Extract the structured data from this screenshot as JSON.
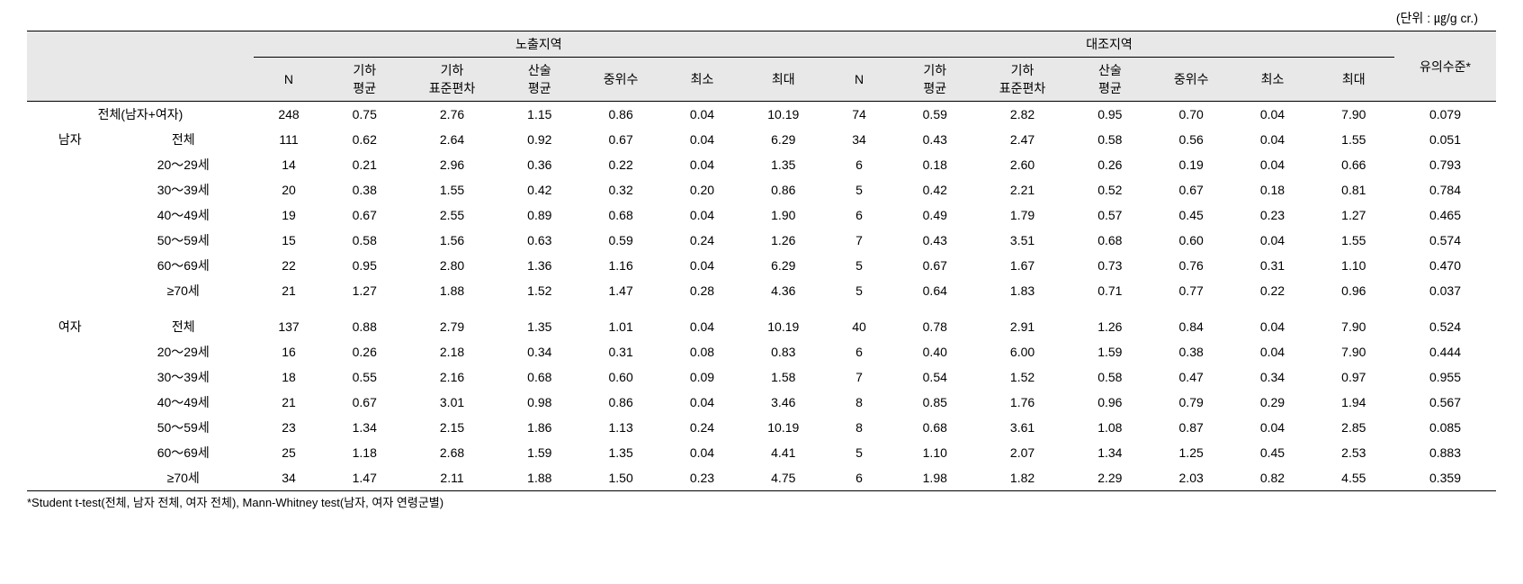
{
  "unit_label": "(단위 : ㎍/g cr.)",
  "headers": {
    "group_a": "노출지역",
    "group_b": "대조지역",
    "n": "N",
    "geo_mean": "기하\n평균",
    "geo_std": "기하\n표준편차",
    "arith_mean": "산술\n평균",
    "median": "중위수",
    "min": "최소",
    "max": "최대",
    "sig": "유의수준*"
  },
  "categories": {
    "total": "전체(남자+여자)",
    "male": "남자",
    "female": "여자",
    "all": "전체",
    "a20": "20～29세",
    "a30": "30～39세",
    "a40": "40～49세",
    "a50": "50～59세",
    "a60": "60～69세",
    "a70": "≥70세"
  },
  "rows": [
    {
      "cat1": "",
      "cat2_key": "total",
      "a": {
        "n": "248",
        "gm": "0.75",
        "gs": "2.76",
        "am": "1.15",
        "med": "0.86",
        "min": "0.04",
        "max": "10.19"
      },
      "b": {
        "n": "74",
        "gm": "0.59",
        "gs": "2.82",
        "am": "0.95",
        "med": "0.70",
        "min": "0.04",
        "max": "7.90"
      },
      "sig": "0.079"
    },
    {
      "cat1_key": "male",
      "cat2_key": "all",
      "a": {
        "n": "111",
        "gm": "0.62",
        "gs": "2.64",
        "am": "0.92",
        "med": "0.67",
        "min": "0.04",
        "max": "6.29"
      },
      "b": {
        "n": "34",
        "gm": "0.43",
        "gs": "2.47",
        "am": "0.58",
        "med": "0.56",
        "min": "0.04",
        "max": "1.55"
      },
      "sig": "0.051"
    },
    {
      "cat1": "",
      "cat2_key": "a20",
      "a": {
        "n": "14",
        "gm": "0.21",
        "gs": "2.96",
        "am": "0.36",
        "med": "0.22",
        "min": "0.04",
        "max": "1.35"
      },
      "b": {
        "n": "6",
        "gm": "0.18",
        "gs": "2.60",
        "am": "0.26",
        "med": "0.19",
        "min": "0.04",
        "max": "0.66"
      },
      "sig": "0.793"
    },
    {
      "cat1": "",
      "cat2_key": "a30",
      "a": {
        "n": "20",
        "gm": "0.38",
        "gs": "1.55",
        "am": "0.42",
        "med": "0.32",
        "min": "0.20",
        "max": "0.86"
      },
      "b": {
        "n": "5",
        "gm": "0.42",
        "gs": "2.21",
        "am": "0.52",
        "med": "0.67",
        "min": "0.18",
        "max": "0.81"
      },
      "sig": "0.784"
    },
    {
      "cat1": "",
      "cat2_key": "a40",
      "a": {
        "n": "19",
        "gm": "0.67",
        "gs": "2.55",
        "am": "0.89",
        "med": "0.68",
        "min": "0.04",
        "max": "1.90"
      },
      "b": {
        "n": "6",
        "gm": "0.49",
        "gs": "1.79",
        "am": "0.57",
        "med": "0.45",
        "min": "0.23",
        "max": "1.27"
      },
      "sig": "0.465"
    },
    {
      "cat1": "",
      "cat2_key": "a50",
      "a": {
        "n": "15",
        "gm": "0.58",
        "gs": "1.56",
        "am": "0.63",
        "med": "0.59",
        "min": "0.24",
        "max": "1.26"
      },
      "b": {
        "n": "7",
        "gm": "0.43",
        "gs": "3.51",
        "am": "0.68",
        "med": "0.60",
        "min": "0.04",
        "max": "1.55"
      },
      "sig": "0.574"
    },
    {
      "cat1": "",
      "cat2_key": "a60",
      "a": {
        "n": "22",
        "gm": "0.95",
        "gs": "2.80",
        "am": "1.36",
        "med": "1.16",
        "min": "0.04",
        "max": "6.29"
      },
      "b": {
        "n": "5",
        "gm": "0.67",
        "gs": "1.67",
        "am": "0.73",
        "med": "0.76",
        "min": "0.31",
        "max": "1.10"
      },
      "sig": "0.470"
    },
    {
      "cat1": "",
      "cat2_key": "a70",
      "a": {
        "n": "21",
        "gm": "1.27",
        "gs": "1.88",
        "am": "1.52",
        "med": "1.47",
        "min": "0.28",
        "max": "4.36"
      },
      "b": {
        "n": "5",
        "gm": "0.64",
        "gs": "1.83",
        "am": "0.71",
        "med": "0.77",
        "min": "0.22",
        "max": "0.96"
      },
      "sig": "0.037"
    },
    {
      "spacer": true
    },
    {
      "cat1_key": "female",
      "cat2_key": "all",
      "a": {
        "n": "137",
        "gm": "0.88",
        "gs": "2.79",
        "am": "1.35",
        "med": "1.01",
        "min": "0.04",
        "max": "10.19"
      },
      "b": {
        "n": "40",
        "gm": "0.78",
        "gs": "2.91",
        "am": "1.26",
        "med": "0.84",
        "min": "0.04",
        "max": "7.90"
      },
      "sig": "0.524"
    },
    {
      "cat1": "",
      "cat2_key": "a20",
      "a": {
        "n": "16",
        "gm": "0.26",
        "gs": "2.18",
        "am": "0.34",
        "med": "0.31",
        "min": "0.08",
        "max": "0.83"
      },
      "b": {
        "n": "6",
        "gm": "0.40",
        "gs": "6.00",
        "am": "1.59",
        "med": "0.38",
        "min": "0.04",
        "max": "7.90"
      },
      "sig": "0.444"
    },
    {
      "cat1": "",
      "cat2_key": "a30",
      "a": {
        "n": "18",
        "gm": "0.55",
        "gs": "2.16",
        "am": "0.68",
        "med": "0.60",
        "min": "0.09",
        "max": "1.58"
      },
      "b": {
        "n": "7",
        "gm": "0.54",
        "gs": "1.52",
        "am": "0.58",
        "med": "0.47",
        "min": "0.34",
        "max": "0.97"
      },
      "sig": "0.955"
    },
    {
      "cat1": "",
      "cat2_key": "a40",
      "a": {
        "n": "21",
        "gm": "0.67",
        "gs": "3.01",
        "am": "0.98",
        "med": "0.86",
        "min": "0.04",
        "max": "3.46"
      },
      "b": {
        "n": "8",
        "gm": "0.85",
        "gs": "1.76",
        "am": "0.96",
        "med": "0.79",
        "min": "0.29",
        "max": "1.94"
      },
      "sig": "0.567"
    },
    {
      "cat1": "",
      "cat2_key": "a50",
      "a": {
        "n": "23",
        "gm": "1.34",
        "gs": "2.15",
        "am": "1.86",
        "med": "1.13",
        "min": "0.24",
        "max": "10.19"
      },
      "b": {
        "n": "8",
        "gm": "0.68",
        "gs": "3.61",
        "am": "1.08",
        "med": "0.87",
        "min": "0.04",
        "max": "2.85"
      },
      "sig": "0.085"
    },
    {
      "cat1": "",
      "cat2_key": "a60",
      "a": {
        "n": "25",
        "gm": "1.18",
        "gs": "2.68",
        "am": "1.59",
        "med": "1.35",
        "min": "0.04",
        "max": "4.41"
      },
      "b": {
        "n": "5",
        "gm": "1.10",
        "gs": "2.07",
        "am": "1.34",
        "med": "1.25",
        "min": "0.45",
        "max": "2.53"
      },
      "sig": "0.883"
    },
    {
      "cat1": "",
      "cat2_key": "a70",
      "a": {
        "n": "34",
        "gm": "1.47",
        "gs": "2.11",
        "am": "1.88",
        "med": "1.50",
        "min": "0.23",
        "max": "4.75"
      },
      "b": {
        "n": "6",
        "gm": "1.98",
        "gs": "1.82",
        "am": "2.29",
        "med": "2.03",
        "min": "0.82",
        "max": "4.55"
      },
      "sig": "0.359"
    }
  ],
  "footnote": "*Student t-test(전체, 남자 전체, 여자 전체), Mann-Whitney test(남자, 여자 연령군별)"
}
